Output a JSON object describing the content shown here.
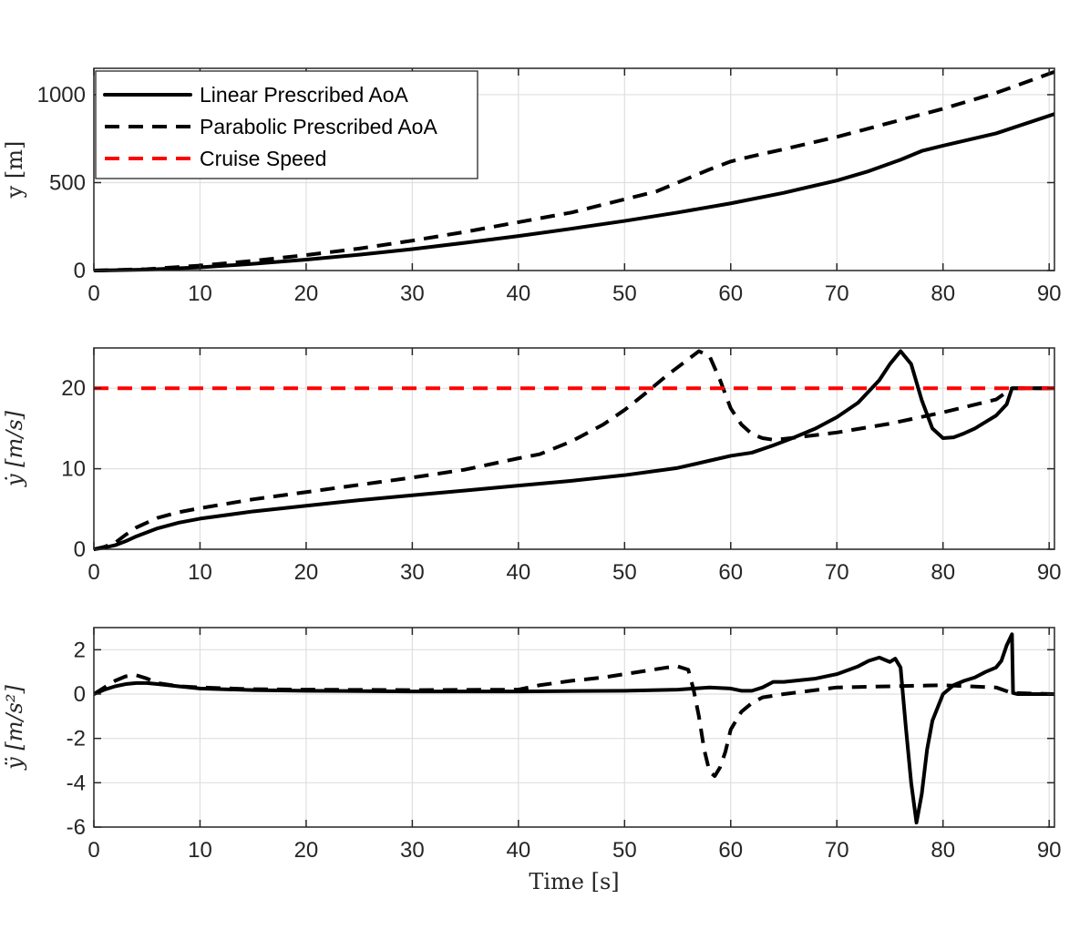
{
  "chart_data": [
    {
      "type": "line",
      "id": "position",
      "xlabel": "",
      "ylabel": "y [m]",
      "xlim": [
        0,
        90.5
      ],
      "ylim": [
        0,
        1150
      ],
      "xticks": [
        0,
        10,
        20,
        30,
        40,
        50,
        60,
        70,
        80,
        90
      ],
      "yticks": [
        0,
        500,
        1000
      ],
      "grid": true,
      "legend": {
        "location": "top-left",
        "entries": [
          "Linear Prescribed AoA",
          "Parabolic Prescribed AoA",
          "Cruise Speed"
        ]
      },
      "series": [
        {
          "name": "Linear Prescribed AoA",
          "style": "solid",
          "color": "#000000",
          "x": [
            0,
            5,
            10,
            15,
            20,
            25,
            30,
            35,
            40,
            45,
            50,
            55,
            60,
            65,
            70,
            73,
            76,
            78,
            80,
            85,
            90.5
          ],
          "y": [
            0,
            5,
            18,
            38,
            62,
            90,
            122,
            158,
            196,
            238,
            282,
            330,
            382,
            442,
            512,
            565,
            630,
            680,
            710,
            780,
            890
          ]
        },
        {
          "name": "Parabolic Prescribed AoA",
          "style": "dashed",
          "color": "#000000",
          "x": [
            0,
            5,
            10,
            15,
            20,
            25,
            30,
            35,
            40,
            45,
            50,
            53,
            55,
            57,
            58,
            60,
            62,
            65,
            70,
            75,
            80,
            85,
            90.5
          ],
          "y": [
            0,
            8,
            28,
            55,
            88,
            125,
            170,
            220,
            275,
            330,
            405,
            450,
            500,
            550,
            575,
            620,
            650,
            690,
            760,
            840,
            920,
            1010,
            1130
          ]
        }
      ]
    },
    {
      "type": "line",
      "id": "velocity",
      "xlabel": "",
      "ylabel": "ẏ [m/s]",
      "xlim": [
        0,
        90.5
      ],
      "ylim": [
        0,
        25
      ],
      "xticks": [
        0,
        10,
        20,
        30,
        40,
        50,
        60,
        70,
        80,
        90
      ],
      "yticks": [
        0,
        10,
        20
      ],
      "grid": true,
      "series": [
        {
          "name": "Linear Prescribed AoA",
          "style": "solid",
          "color": "#000000",
          "x": [
            0,
            1,
            2,
            3,
            4,
            6,
            8,
            10,
            15,
            20,
            25,
            30,
            35,
            40,
            45,
            50,
            55,
            58,
            60,
            62,
            64,
            66,
            68,
            70,
            72,
            74,
            75,
            76,
            77,
            78,
            79,
            80,
            81,
            82,
            83,
            84,
            85,
            86,
            86.5,
            90.5
          ],
          "y": [
            0,
            0.2,
            0.5,
            1.0,
            1.6,
            2.6,
            3.3,
            3.8,
            4.7,
            5.4,
            6.1,
            6.7,
            7.3,
            7.9,
            8.5,
            9.2,
            10.1,
            11.0,
            11.6,
            12.0,
            12.9,
            13.9,
            15.0,
            16.4,
            18.2,
            21.0,
            23.0,
            24.6,
            23.0,
            18.5,
            15.0,
            13.8,
            13.9,
            14.4,
            15.0,
            15.8,
            16.6,
            18.0,
            20.0,
            20.0
          ]
        },
        {
          "name": "Parabolic Prescribed AoA",
          "style": "dashed",
          "color": "#000000",
          "x": [
            0,
            1,
            2,
            3,
            4,
            6,
            8,
            10,
            15,
            20,
            25,
            30,
            35,
            40,
            42,
            45,
            48,
            50,
            52,
            54,
            56,
            57,
            58,
            59,
            60,
            61,
            62,
            63,
            64,
            65,
            70,
            75,
            80,
            85,
            86.5,
            90.5
          ],
          "y": [
            0,
            0.3,
            0.8,
            1.8,
            2.7,
            3.9,
            4.6,
            5.1,
            6.2,
            7.1,
            8.0,
            8.9,
            9.9,
            11.3,
            11.8,
            13.4,
            15.5,
            17.3,
            19.4,
            21.6,
            23.6,
            24.6,
            24.0,
            21.0,
            17.5,
            15.5,
            14.3,
            13.8,
            13.6,
            13.7,
            14.5,
            15.6,
            17.0,
            18.6,
            20.0,
            20.0
          ]
        },
        {
          "name": "Cruise Speed",
          "style": "dashed",
          "color": "#ff0000",
          "x": [
            0,
            90.5
          ],
          "y": [
            20,
            20
          ]
        }
      ]
    },
    {
      "type": "line",
      "id": "acceleration",
      "xlabel": "Time [s]",
      "ylabel": "ÿ [m/s²]",
      "xlim": [
        0,
        90.5
      ],
      "ylim": [
        -6,
        3
      ],
      "xticks": [
        0,
        10,
        20,
        30,
        40,
        50,
        60,
        70,
        80,
        90
      ],
      "yticks": [
        2,
        0,
        -2,
        -4,
        -6
      ],
      "grid": true,
      "series": [
        {
          "name": "Linear Prescribed AoA",
          "style": "solid",
          "color": "#000000",
          "x": [
            0,
            1,
            2,
            3,
            4,
            5,
            6,
            8,
            10,
            15,
            20,
            30,
            40,
            50,
            55,
            58,
            60,
            61,
            62,
            63,
            64,
            65,
            68,
            70,
            72,
            73,
            74,
            75,
            75.5,
            76,
            76.5,
            77,
            77.5,
            78,
            78.5,
            79,
            80,
            81,
            82,
            83,
            84,
            85,
            85.5,
            86,
            86.5,
            86.6,
            87,
            90.5
          ],
          "y": [
            0,
            0.2,
            0.35,
            0.45,
            0.5,
            0.5,
            0.45,
            0.35,
            0.25,
            0.18,
            0.15,
            0.12,
            0.12,
            0.15,
            0.2,
            0.3,
            0.25,
            0.15,
            0.15,
            0.3,
            0.55,
            0.55,
            0.7,
            0.9,
            1.25,
            1.5,
            1.65,
            1.45,
            1.6,
            1.2,
            -1.5,
            -4.0,
            -5.8,
            -4.5,
            -2.5,
            -1.2,
            0.0,
            0.4,
            0.6,
            0.75,
            1.0,
            1.2,
            1.5,
            2.2,
            2.7,
            0.05,
            0.0,
            0.0
          ]
        },
        {
          "name": "Parabolic Prescribed AoA",
          "style": "dashed",
          "color": "#000000",
          "x": [
            0,
            1,
            2,
            3,
            4,
            5,
            6,
            8,
            10,
            15,
            20,
            30,
            40,
            42,
            45,
            48,
            50,
            52,
            54,
            55,
            56,
            56.5,
            57,
            57.5,
            58,
            58.5,
            59,
            59.5,
            60,
            61,
            62,
            63,
            65,
            70,
            75,
            80,
            85,
            86.5,
            90.5
          ],
          "y": [
            0,
            0.3,
            0.6,
            0.8,
            0.85,
            0.7,
            0.5,
            0.35,
            0.3,
            0.22,
            0.2,
            0.18,
            0.2,
            0.4,
            0.6,
            0.75,
            0.9,
            1.05,
            1.2,
            1.25,
            1.1,
            0.2,
            -1.0,
            -2.5,
            -3.5,
            -3.7,
            -3.3,
            -2.6,
            -1.6,
            -0.8,
            -0.4,
            -0.15,
            0.0,
            0.3,
            0.35,
            0.4,
            0.3,
            0.05,
            0.0
          ]
        }
      ]
    }
  ]
}
